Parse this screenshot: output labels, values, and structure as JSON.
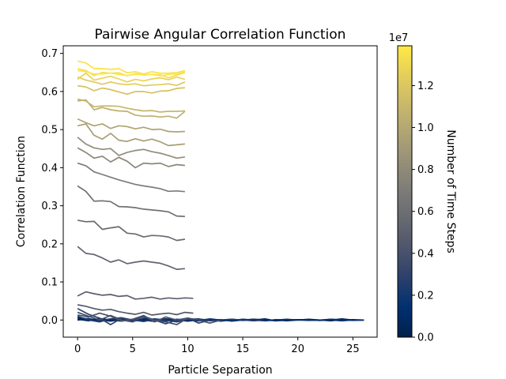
{
  "chart_data": {
    "type": "line",
    "title": "Pairwise Angular Correlation Function",
    "xlabel": "Particle Separation",
    "ylabel": "Correlation Function",
    "xlim": [
      -1.3,
      27.2
    ],
    "ylim": [
      -0.045,
      0.72
    ],
    "xticks": [
      0,
      5,
      10,
      15,
      20,
      25
    ],
    "yticks": [
      0.0,
      0.1,
      0.2,
      0.3,
      0.4,
      0.5,
      0.6,
      0.7
    ],
    "ytick_labels": [
      "0.0",
      "0.1",
      "0.2",
      "0.3",
      "0.4",
      "0.5",
      "0.6",
      "0.7"
    ],
    "grid": false,
    "colormap": "cividis",
    "colorbar": {
      "label": "Number of Time Steps",
      "range": [
        0,
        13900000
      ],
      "ticks": [
        0,
        2000000,
        4000000,
        6000000,
        8000000,
        10000000,
        12000000
      ],
      "tick_labels": [
        "0.0",
        "0.2",
        "0.4",
        "0.6",
        "0.8",
        "1.0",
        "1.2"
      ],
      "offset_label": "1e7"
    },
    "series": [
      {
        "t": 50000,
        "x": [
          0,
          1,
          2,
          3,
          4,
          5,
          6,
          7,
          8,
          9,
          10,
          11,
          12,
          13,
          14,
          15,
          16,
          17,
          18,
          19,
          20,
          21,
          22,
          23,
          24,
          25,
          26
        ],
        "y": [
          0.005,
          0.001,
          -0.002,
          0.003,
          0.0,
          -0.003,
          0.002,
          0.0,
          -0.002,
          0.001,
          0.0,
          -0.002,
          0.001,
          0.0,
          0.002,
          -0.001,
          0.0,
          0.003,
          -0.002,
          0.0,
          0.001,
          0.0,
          -0.001,
          0.002,
          0.0,
          0.001,
          0.0
        ]
      },
      {
        "t": 150000,
        "x": [
          0,
          1,
          2,
          3,
          4,
          5,
          6,
          7,
          8,
          9,
          10,
          11,
          12,
          13,
          14,
          15,
          16,
          17,
          18,
          19,
          20,
          21,
          22,
          23,
          24,
          25,
          26
        ],
        "y": [
          0.0,
          0.003,
          0.0,
          -0.003,
          0.002,
          0.0,
          -0.002,
          0.0,
          0.003,
          0.0,
          -0.003,
          0.0,
          0.002,
          0.0,
          -0.001,
          0.002,
          0.0,
          -0.002,
          0.001,
          0.0,
          0.0,
          0.002,
          0.0,
          -0.002,
          0.001,
          0.0,
          0.0
        ]
      },
      {
        "t": 400000,
        "x": [
          0,
          1,
          2,
          3,
          4,
          5,
          6,
          7,
          8,
          9,
          10,
          11,
          12,
          13,
          14,
          15,
          16,
          17,
          18,
          19,
          20,
          21,
          22,
          23,
          24,
          25,
          26
        ],
        "y": [
          0.002,
          -0.002,
          0.004,
          0.0,
          -0.003,
          0.002,
          0.0,
          -0.004,
          0.002,
          0.0,
          0.003,
          -0.002,
          0.0,
          0.001,
          -0.003,
          0.0,
          0.002,
          0.0,
          -0.002,
          0.0,
          0.001,
          0.0,
          -0.001,
          0.0,
          0.003,
          0.0,
          0.0
        ]
      },
      {
        "t": 900000,
        "x": [
          0,
          1,
          2,
          3,
          4,
          5,
          6,
          7,
          8,
          9,
          10,
          11,
          12,
          13,
          14,
          15,
          16,
          17,
          18,
          19,
          20,
          21,
          22,
          23,
          24,
          25,
          26
        ],
        "y": [
          0.0,
          0.004,
          -0.003,
          0.0,
          0.005,
          -0.003,
          0.0,
          0.003,
          0.0,
          -0.003,
          0.0,
          0.002,
          0.0,
          -0.003,
          0.0,
          0.0,
          0.002,
          0.0,
          0.0,
          -0.002,
          0.0,
          0.001,
          0.0,
          0.0,
          -0.002,
          0.0,
          0.0
        ]
      },
      {
        "t": 1600000,
        "x": [
          0,
          1,
          2,
          3,
          4,
          5,
          6,
          7,
          8,
          9,
          10,
          11,
          12,
          13,
          14,
          15,
          16,
          17,
          18,
          19,
          20,
          21,
          22,
          23,
          24,
          25,
          26
        ],
        "y": [
          0.008,
          0.002,
          -0.004,
          0.003,
          0.0,
          -0.004,
          0.004,
          0.0,
          -0.003,
          0.002,
          0.0,
          -0.002,
          0.003,
          0.0,
          -0.002,
          0.0,
          0.001,
          -0.002,
          0.0,
          0.002,
          0.0,
          -0.001,
          0.0,
          0.002,
          0.0,
          -0.001,
          0.0
        ]
      },
      {
        "t": 2500000,
        "x": [
          0,
          1,
          2,
          3,
          4,
          5,
          6,
          7,
          8,
          9,
          10,
          11,
          12,
          13,
          14,
          15,
          16,
          17
        ],
        "y": [
          0.01,
          0.0,
          -0.005,
          0.003,
          0.006,
          0.0,
          -0.004,
          0.002,
          0.0,
          -0.005,
          0.002,
          0.003,
          -0.002,
          0.0,
          0.002,
          0.0,
          -0.002,
          0.0
        ]
      },
      {
        "t": 3000000,
        "x": [
          0,
          1,
          2,
          3,
          4,
          5,
          6,
          7,
          8,
          9,
          10,
          11,
          12
        ],
        "y": [
          0.03,
          0.015,
          0.005,
          -0.012,
          0.005,
          0.0,
          0.008,
          0.0,
          -0.01,
          0.0,
          0.005,
          -0.008,
          0.0
        ]
      },
      {
        "t": 3700000,
        "x": [
          0,
          1,
          2,
          3,
          4,
          5,
          6,
          7,
          8,
          9,
          10,
          11,
          12,
          13
        ],
        "y": [
          0.02,
          0.01,
          0.0,
          0.012,
          0.0,
          -0.005,
          0.01,
          0.0,
          -0.005,
          -0.012,
          0.005,
          0.0,
          -0.008,
          0.0
        ]
      },
      {
        "t": 4100000,
        "x": [
          0,
          1,
          2,
          3,
          4,
          5,
          6,
          7,
          8,
          9,
          10
        ],
        "y": [
          0.013,
          0.008,
          0.018,
          0.01,
          -0.002,
          0.002,
          0.012,
          -0.005,
          0.008,
          0.0,
          0.003
        ]
      },
      {
        "t": 4600000,
        "x": [
          0,
          0.75,
          1.5,
          2.25,
          3,
          3.75,
          4.5,
          5.25,
          6,
          6.75,
          7.5,
          8.25,
          9,
          9.75,
          10.5
        ],
        "y": [
          0.04,
          0.036,
          0.03,
          0.026,
          0.028,
          0.022,
          0.018,
          0.015,
          0.02,
          0.013,
          0.016,
          0.018,
          0.014,
          0.02,
          0.018
        ]
      },
      {
        "t": 4900000,
        "x": [
          0,
          0.75,
          1.5,
          2.25,
          3,
          3.75,
          4.5,
          5.25,
          6,
          6.75,
          7.5,
          8.25,
          9,
          9.75,
          10.5
        ],
        "y": [
          0.063,
          0.074,
          0.069,
          0.065,
          0.067,
          0.062,
          0.064,
          0.055,
          0.057,
          0.06,
          0.055,
          0.058,
          0.056,
          0.058,
          0.057
        ]
      },
      {
        "t": 5300000,
        "x": [
          0,
          0.75,
          1.5,
          2.25,
          3,
          3.75,
          4.5,
          5.25,
          6,
          6.75,
          7.5,
          8.25,
          9,
          9.75
        ],
        "y": [
          0.193,
          0.175,
          0.172,
          0.163,
          0.152,
          0.158,
          0.148,
          0.152,
          0.155,
          0.152,
          0.149,
          0.142,
          0.133,
          0.135
        ]
      },
      {
        "t": 5700000,
        "x": [
          0,
          0.75,
          1.5,
          2.25,
          3,
          3.75,
          4.5,
          5.25,
          6,
          6.75,
          7.5,
          8.25,
          9,
          9.75
        ],
        "y": [
          0.262,
          0.258,
          0.259,
          0.238,
          0.242,
          0.245,
          0.228,
          0.226,
          0.218,
          0.222,
          0.221,
          0.218,
          0.209,
          0.212
        ]
      },
      {
        "t": 6200000,
        "x": [
          0,
          0.75,
          1.5,
          2.25,
          3,
          3.75,
          4.5,
          5.25,
          6,
          6.75,
          7.5,
          8.25,
          9,
          9.75
        ],
        "y": [
          0.352,
          0.338,
          0.312,
          0.313,
          0.311,
          0.298,
          0.297,
          0.295,
          0.291,
          0.289,
          0.287,
          0.284,
          0.273,
          0.272
        ]
      },
      {
        "t": 7000000,
        "x": [
          0,
          0.75,
          1.5,
          2.25,
          3,
          3.75,
          4.5,
          5.25,
          6,
          6.75,
          7.5,
          8.25,
          9,
          9.75
        ],
        "y": [
          0.412,
          0.405,
          0.389,
          0.382,
          0.375,
          0.368,
          0.362,
          0.356,
          0.352,
          0.349,
          0.345,
          0.338,
          0.339,
          0.337
        ]
      },
      {
        "t": 7800000,
        "x": [
          0,
          0.75,
          1.5,
          2.25,
          3,
          3.75,
          4.5,
          5.25,
          6,
          6.75,
          7.5,
          8.25,
          9,
          9.75
        ],
        "y": [
          0.452,
          0.44,
          0.425,
          0.43,
          0.415,
          0.427,
          0.417,
          0.4,
          0.412,
          0.41,
          0.412,
          0.403,
          0.408,
          0.406
        ]
      },
      {
        "t": 8200000,
        "x": [
          0,
          0.75,
          1.5,
          2.25,
          3,
          3.75,
          4.5,
          5.25,
          6,
          6.75,
          7.5,
          8.25,
          9,
          9.75
        ],
        "y": [
          0.48,
          0.462,
          0.452,
          0.448,
          0.45,
          0.432,
          0.44,
          0.445,
          0.448,
          0.442,
          0.438,
          0.432,
          0.425,
          0.428
        ]
      },
      {
        "t": 9300000,
        "x": [
          0,
          0.75,
          1.5,
          2.25,
          3,
          3.75,
          4.5,
          5.25,
          6,
          6.75,
          7.5,
          8.25,
          9,
          9.75
        ],
        "y": [
          0.51,
          0.515,
          0.485,
          0.475,
          0.49,
          0.472,
          0.469,
          0.476,
          0.47,
          0.475,
          0.468,
          0.458,
          0.46,
          0.462
        ]
      },
      {
        "t": 9700000,
        "x": [
          0,
          0.75,
          1.5,
          2.25,
          3,
          3.75,
          4.5,
          5.25,
          6,
          6.75,
          7.5,
          8.25,
          9,
          9.75
        ],
        "y": [
          0.528,
          0.518,
          0.51,
          0.515,
          0.503,
          0.51,
          0.508,
          0.502,
          0.506,
          0.5,
          0.501,
          0.495,
          0.494,
          0.495
        ]
      },
      {
        "t": 10500000,
        "x": [
          0,
          0.75,
          1.5,
          2.25,
          3,
          3.75,
          4.5,
          5.25,
          6,
          6.75,
          7.5,
          8.25,
          9,
          9.75
        ],
        "y": [
          0.575,
          0.578,
          0.552,
          0.558,
          0.552,
          0.549,
          0.548,
          0.538,
          0.535,
          0.536,
          0.533,
          0.535,
          0.53,
          0.548
        ]
      },
      {
        "t": 10900000,
        "x": [
          0,
          0.75,
          1.5,
          2.25,
          3,
          3.75,
          4.5,
          5.25,
          6,
          6.75,
          7.5,
          8.25,
          9,
          9.75
        ],
        "y": [
          0.58,
          0.575,
          0.56,
          0.562,
          0.562,
          0.561,
          0.556,
          0.552,
          0.549,
          0.55,
          0.546,
          0.548,
          0.548,
          0.549
        ]
      },
      {
        "t": 11700000,
        "x": [
          0,
          0.75,
          1.5,
          2.25,
          3,
          3.75,
          4.5,
          5.25,
          6,
          6.75,
          7.5,
          8.25,
          9,
          9.75
        ],
        "y": [
          0.615,
          0.612,
          0.602,
          0.609,
          0.605,
          0.599,
          0.593,
          0.6,
          0.6,
          0.596,
          0.601,
          0.602,
          0.608,
          0.61
        ]
      },
      {
        "t": 12200000,
        "x": [
          0,
          0.75,
          1.5,
          2.25,
          3,
          3.75,
          4.5,
          5.25,
          6,
          6.75,
          7.5,
          8.25,
          9,
          9.75
        ],
        "y": [
          0.638,
          0.63,
          0.625,
          0.619,
          0.625,
          0.62,
          0.618,
          0.62,
          0.615,
          0.617,
          0.618,
          0.62,
          0.616,
          0.625
        ]
      },
      {
        "t": 12700000,
        "x": [
          0,
          0.75,
          1.5,
          2.25,
          3,
          3.75,
          4.5,
          5.25,
          6,
          6.75,
          7.5,
          8.25,
          9,
          9.75
        ],
        "y": [
          0.632,
          0.648,
          0.63,
          0.635,
          0.64,
          0.633,
          0.625,
          0.632,
          0.628,
          0.633,
          0.636,
          0.631,
          0.638,
          0.632
        ]
      },
      {
        "t": 13200000,
        "x": [
          0,
          0.75,
          1.5,
          2.25,
          3,
          3.75,
          4.5,
          5.25,
          6,
          6.75,
          7.5,
          8.25,
          9,
          9.75
        ],
        "y": [
          0.66,
          0.655,
          0.642,
          0.65,
          0.648,
          0.649,
          0.641,
          0.647,
          0.643,
          0.645,
          0.644,
          0.636,
          0.643,
          0.65
        ]
      },
      {
        "t": 13500000,
        "x": [
          0,
          0.75,
          1.5,
          2.25,
          3,
          3.75,
          4.5,
          5.25,
          6,
          6.75,
          7.5,
          8.25,
          9,
          9.75
        ],
        "y": [
          0.68,
          0.675,
          0.66,
          0.66,
          0.658,
          0.66,
          0.649,
          0.652,
          0.646,
          0.652,
          0.648,
          0.648,
          0.65,
          0.655
        ]
      },
      {
        "t": 13800000,
        "x": [
          0,
          0.75,
          1.5,
          2.25,
          3,
          3.75,
          4.5,
          5.25,
          6,
          6.75,
          7.5,
          8.25,
          9,
          9.75
        ],
        "y": [
          0.655,
          0.652,
          0.646,
          0.646,
          0.648,
          0.645,
          0.642,
          0.645,
          0.644,
          0.645,
          0.641,
          0.645,
          0.646,
          0.652
        ]
      }
    ]
  }
}
